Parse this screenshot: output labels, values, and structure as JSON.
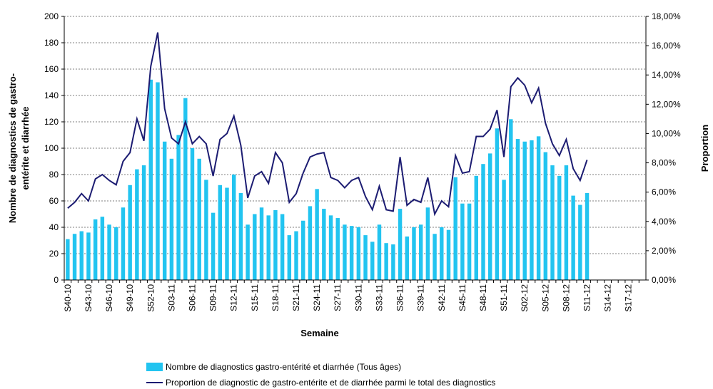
{
  "chart_data": {
    "type": "bar_line",
    "ylabel": [
      "Nombre de diagnostics de gastro-",
      "entérite et diarrhée"
    ],
    "y2label": "Proportion",
    "xlabel": "Semaine",
    "categories": [
      "S40-10",
      null,
      null,
      "S43-10",
      null,
      null,
      "S46-10",
      null,
      null,
      "S49-10",
      null,
      null,
      "S52-10",
      null,
      null,
      "S03-11",
      null,
      null,
      "S06-11",
      null,
      null,
      "S09-11",
      null,
      null,
      "S12-11",
      null,
      null,
      "S15-11",
      null,
      null,
      "S18-11",
      null,
      null,
      "S21-11",
      null,
      null,
      "S24-11",
      null,
      null,
      "S27-11",
      null,
      null,
      "S30-11",
      null,
      null,
      "S33-11",
      null,
      null,
      "S36-11",
      null,
      null,
      "S39-11",
      null,
      null,
      "S42-11",
      null,
      null,
      "S45-11",
      null,
      null,
      "S48-11",
      null,
      null,
      "S51-11",
      null,
      null,
      "S02-12",
      null,
      null,
      "S05-12",
      null,
      null,
      "S08-12",
      null,
      null,
      "S11-12",
      null,
      null,
      "S14-12",
      null,
      null,
      "S17-12",
      null,
      null
    ],
    "series": [
      {
        "name": "Nombre de diagnostics gastro-entérité et diarrhée (Tous âges)",
        "color": "#22c4f0",
        "values": [
          31,
          35,
          37,
          36,
          46,
          48,
          42,
          40,
          55,
          72,
          84,
          87,
          152,
          150,
          105,
          92,
          110,
          138,
          100,
          92,
          76,
          51,
          72,
          70,
          80,
          66,
          42,
          50,
          55,
          49,
          53,
          50,
          34,
          37,
          45,
          56,
          69,
          54,
          49,
          47,
          42,
          41,
          40,
          34,
          29,
          42,
          28,
          27,
          54,
          33,
          40,
          42,
          55,
          35,
          40,
          38,
          78,
          58,
          58,
          79,
          88,
          96,
          115,
          76,
          122,
          107,
          105,
          106,
          109,
          97,
          87,
          79,
          87,
          64,
          57,
          66,
          null,
          null,
          null,
          null,
          null,
          null,
          null,
          null
        ]
      },
      {
        "name": "Proportion de diagnostic de gastro-entérite et de diarrhée parmi le total des diagnostics",
        "color": "#1c1c72",
        "axis": "y2",
        "values": [
          4.9,
          5.3,
          5.9,
          5.4,
          6.9,
          7.2,
          6.8,
          6.5,
          8.1,
          8.7,
          11.0,
          9.5,
          14.6,
          16.9,
          11.7,
          9.7,
          9.3,
          10.8,
          9.3,
          9.8,
          9.3,
          7.1,
          9.6,
          10.0,
          11.2,
          9.2,
          5.6,
          7.1,
          7.4,
          6.6,
          8.7,
          8.0,
          5.3,
          5.9,
          7.3,
          8.4,
          8.6,
          8.7,
          7.0,
          6.8,
          6.3,
          6.8,
          7.0,
          5.7,
          4.8,
          6.4,
          4.8,
          4.7,
          8.4,
          5.1,
          5.5,
          5.3,
          7.0,
          4.5,
          5.4,
          5.0,
          8.5,
          7.3,
          7.4,
          9.8,
          9.8,
          10.3,
          11.6,
          8.4,
          13.2,
          13.8,
          13.3,
          12.1,
          13.1,
          10.7,
          9.3,
          8.5,
          9.6,
          7.6,
          6.8,
          8.2,
          null,
          null,
          null,
          null,
          null,
          null,
          null,
          null
        ]
      }
    ],
    "ylim": [
      0,
      200
    ],
    "yticks": [
      0,
      20,
      40,
      60,
      80,
      100,
      120,
      140,
      160,
      180,
      200
    ],
    "y2lim": [
      0,
      18
    ],
    "y2ticks": [
      {
        "value": 0,
        "label": "0,00%"
      },
      {
        "value": 2,
        "label": "2,00%"
      },
      {
        "value": 4,
        "label": "4,00%"
      },
      {
        "value": 6,
        "label": "6,00%"
      },
      {
        "value": 8,
        "label": "8,00%"
      },
      {
        "value": 10,
        "label": "10,00%"
      },
      {
        "value": 12,
        "label": "12,00%"
      },
      {
        "value": 14,
        "label": "14,00%"
      },
      {
        "value": 16,
        "label": "16,00%"
      },
      {
        "value": 18,
        "label": "18,00%"
      }
    ],
    "grid": true,
    "legend": "bottom"
  }
}
